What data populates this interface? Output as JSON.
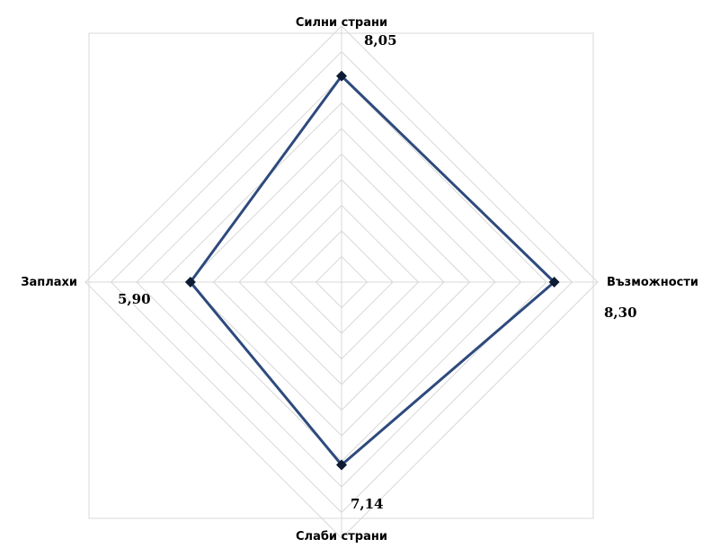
{
  "chart_data": {
    "type": "radar",
    "axes": [
      "Силни страни",
      "Възможности",
      "Слаби страни",
      "Заплахи"
    ],
    "values": [
      8.05,
      8.3,
      7.14,
      5.9
    ],
    "value_labels": [
      "8,05",
      "8,30",
      "7,14",
      "5,90"
    ],
    "range": [
      0,
      10
    ],
    "grid_rings": 10,
    "grid": true,
    "series_color": "#2E4A7D",
    "marker_color": "#0D1B33",
    "grid_color": "#D9D9D9"
  }
}
